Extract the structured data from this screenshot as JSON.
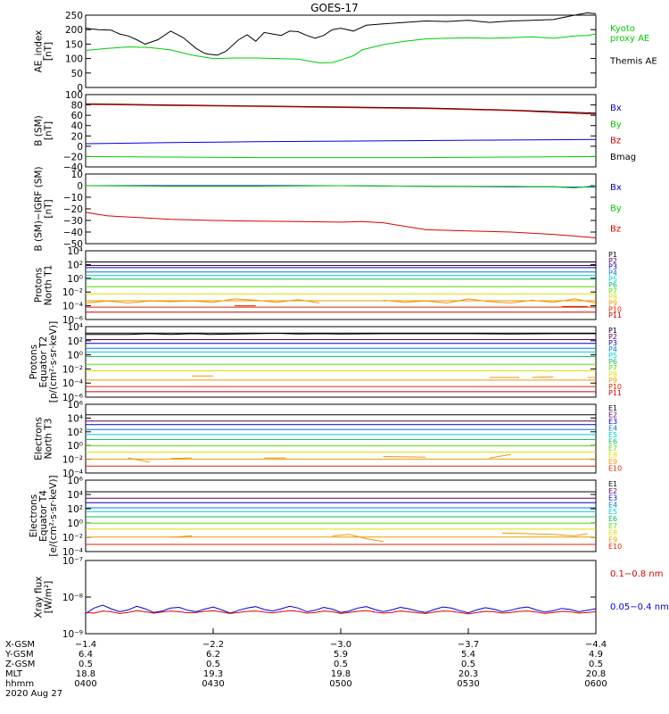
{
  "title": "GOES-17",
  "colors": {
    "black": "#000000",
    "green": "#00cc00",
    "red": "#dd0000",
    "blue": "#0000dd",
    "P": [
      "#000000",
      "#550055",
      "#0000cc",
      "#0077dd",
      "#00cccc",
      "#00bb66",
      "#55dd00",
      "#dddd00",
      "#ee9900",
      "#dd2200",
      "#cc0000"
    ],
    "E": [
      "#000000",
      "#550055",
      "#0000cc",
      "#0077dd",
      "#00cccc",
      "#00bb66",
      "#55dd00",
      "#dddd00",
      "#ee9900",
      "#dd2200",
      "#cc0000"
    ]
  },
  "chart_data": [
    {
      "type": "line",
      "ylabel": "AE_index\n[nT]",
      "ylim": [
        0,
        250
      ],
      "yticks": [
        "0",
        "50",
        "100",
        "150",
        "200",
        "250"
      ],
      "grid": false,
      "legend": [
        {
          "text": "Kyoto\nproxy AE",
          "color": "green"
        },
        {
          "text": "Themis AE",
          "color": "black"
        }
      ],
      "series": [
        {
          "name": "Themis AE",
          "color": "black",
          "x": [
            0,
            3,
            6,
            8,
            10,
            12,
            14,
            17,
            20,
            23,
            26,
            28,
            29,
            31,
            33,
            36,
            38,
            40,
            42,
            44,
            46,
            48,
            50,
            52,
            54,
            56,
            58,
            60,
            63,
            66,
            70,
            75,
            80,
            85,
            90,
            95,
            100,
            105,
            110,
            115,
            118,
            120
          ],
          "y": [
            205,
            200,
            198,
            185,
            178,
            165,
            150,
            165,
            195,
            172,
            135,
            118,
            115,
            112,
            125,
            165,
            182,
            160,
            190,
            185,
            180,
            195,
            193,
            180,
            170,
            180,
            200,
            205,
            195,
            215,
            220,
            225,
            230,
            228,
            232,
            225,
            230,
            232,
            235,
            250,
            258,
            255
          ]
        },
        {
          "name": "Kyoto proxy AE",
          "color": "green",
          "x": [
            0,
            5,
            10,
            15,
            20,
            25,
            30,
            35,
            40,
            45,
            50,
            55,
            58,
            60,
            63,
            65,
            70,
            75,
            80,
            85,
            90,
            95,
            100,
            105,
            110,
            115,
            118,
            120
          ],
          "y": [
            128,
            135,
            140,
            138,
            130,
            112,
            100,
            102,
            102,
            100,
            98,
            85,
            86,
            95,
            110,
            130,
            148,
            160,
            168,
            170,
            172,
            170,
            172,
            175,
            170,
            178,
            180,
            185
          ]
        }
      ]
    },
    {
      "type": "line",
      "ylabel": "B (SM)\n[nT]",
      "ylim": [
        -40,
        100
      ],
      "yticks": [
        "−40",
        "−20",
        "0",
        "20",
        "40",
        "60",
        "80",
        "100"
      ],
      "legend": [
        {
          "text": "Bx",
          "color": "blue"
        },
        {
          "text": "By",
          "color": "green"
        },
        {
          "text": "Bz",
          "color": "red"
        },
        {
          "text": "Bmag",
          "color": "black"
        }
      ],
      "series": [
        {
          "name": "Bmag",
          "color": "black",
          "x": [
            0,
            20,
            40,
            60,
            80,
            100,
            120
          ],
          "y": [
            82,
            80,
            78,
            76,
            74,
            70,
            64
          ]
        },
        {
          "name": "Bz",
          "color": "red",
          "x": [
            0,
            20,
            40,
            60,
            80,
            100,
            120
          ],
          "y": [
            81,
            79,
            77,
            75,
            73,
            69,
            62
          ]
        },
        {
          "name": "Bx",
          "color": "blue",
          "x": [
            0,
            20,
            40,
            60,
            80,
            100,
            120
          ],
          "y": [
            5,
            7,
            9,
            10,
            11,
            12,
            13
          ]
        },
        {
          "name": "By",
          "color": "green",
          "x": [
            0,
            20,
            40,
            60,
            80,
            100,
            120
          ],
          "y": [
            -20,
            -21,
            -22,
            -22,
            -22,
            -21,
            -20
          ]
        }
      ]
    },
    {
      "type": "line",
      "ylabel": "B (SM)−IGRF (SM)\n[nT]",
      "ylim": [
        -50,
        10
      ],
      "yticks": [
        "−50",
        "−40",
        "−30",
        "−20",
        "−10",
        "0",
        "10"
      ],
      "legend": [
        {
          "text": "Bx",
          "color": "blue"
        },
        {
          "text": "By",
          "color": "green"
        },
        {
          "text": "Bz",
          "color": "red"
        }
      ],
      "series": [
        {
          "name": "Bx",
          "color": "blue",
          "x": [
            0,
            20,
            40,
            60,
            80,
            100,
            110,
            115,
            120
          ],
          "y": [
            0,
            0,
            0,
            0,
            -0.5,
            -1,
            -1,
            -1.5,
            -1
          ]
        },
        {
          "name": "By",
          "color": "green",
          "x": [
            0,
            20,
            40,
            60,
            80,
            100,
            110,
            115,
            120
          ],
          "y": [
            0,
            -0.5,
            -0.5,
            0,
            -0.5,
            -0.5,
            -1,
            -2,
            0
          ]
        },
        {
          "name": "Bz",
          "color": "red",
          "x": [
            0,
            5,
            10,
            20,
            30,
            40,
            50,
            60,
            65,
            70,
            75,
            80,
            90,
            100,
            110,
            120
          ],
          "y": [
            -23,
            -26,
            -27,
            -29,
            -30,
            -30.5,
            -31,
            -31.5,
            -31,
            -32,
            -35,
            -38,
            -39,
            -40,
            -42,
            -45
          ]
        }
      ]
    },
    {
      "type": "line",
      "log": true,
      "ylabel": "Protons\nNorth T1",
      "ylim": [
        -6,
        4
      ],
      "yticks": [
        "10⁻⁶",
        "10⁻⁴",
        "10⁻²",
        "10⁰",
        "10²",
        "10⁴"
      ],
      "legend": [
        "P1",
        "P2",
        "P3",
        "P4",
        "P5",
        "P6",
        "P7",
        "P8",
        "P9",
        "P10",
        "P11"
      ],
      "levels": [
        2.3,
        1.9,
        1.5,
        1.0,
        0.4,
        -0.2,
        -1.2,
        -2.3,
        -3.2,
        -4.2,
        -5.0
      ],
      "fragments": [
        {
          "idx": 8,
          "x": [
            0,
            5,
            10,
            15,
            20,
            25,
            30,
            35,
            40,
            45,
            50,
            55
          ],
          "y": [
            -3.6,
            -3.3,
            -3.6,
            -3.3,
            -3.4,
            -3.3,
            -3.5,
            -3.0,
            -3.2,
            -3.5,
            -3.1,
            -3.6
          ]
        },
        {
          "idx": 8,
          "x": [
            70,
            75,
            80,
            85,
            90,
            95,
            100,
            105,
            110,
            115,
            120
          ],
          "y": [
            -3.2,
            -3.5,
            -3.3,
            -3.6,
            -3.0,
            -3.4,
            -3.6,
            -3.2,
            -3.5,
            -3.0,
            -3.6
          ]
        },
        {
          "idx": 9,
          "x": [
            35,
            40
          ],
          "y": [
            -4.0,
            -4.0
          ]
        },
        {
          "idx": 9,
          "x": [
            112,
            118
          ],
          "y": [
            -4.1,
            -4.1
          ]
        }
      ]
    },
    {
      "type": "line",
      "log": true,
      "ylabel": "Protons\nEquator T2\n[p/(cm²·s·sr·keV)]",
      "ylim": [
        -6,
        4
      ],
      "yticks": [
        "10⁻⁶",
        "10⁻⁴",
        "10⁻²",
        "10⁰",
        "10²",
        "10⁴"
      ],
      "legend": [
        "P1",
        "P2",
        "P3",
        "P4",
        "P5",
        "P6",
        "P7",
        "P8",
        "P9",
        "P10",
        "P11"
      ],
      "levels": [
        3.0,
        2.2,
        1.6,
        1.0,
        0.4,
        -0.3,
        -1.3,
        -2.3,
        -3.5,
        -4.5,
        -5.3
      ],
      "fragments": [
        {
          "idx": 0,
          "x": [
            0,
            10,
            15,
            20,
            25,
            28,
            29,
            35,
            40,
            45,
            50,
            55,
            60,
            70,
            80,
            90,
            100,
            110,
            120
          ],
          "y": [
            2.9,
            2.9,
            3.0,
            2.9,
            3.0,
            2.95,
            2.9,
            2.95,
            3.0,
            3.05,
            2.95,
            3.0,
            2.95,
            3.0,
            3.0,
            3.0,
            2.95,
            3.0,
            3.0
          ]
        },
        {
          "idx": 8,
          "x": [
            25,
            30
          ],
          "y": [
            -3.0,
            -3.0
          ]
        },
        {
          "idx": 8,
          "x": [
            95,
            102
          ],
          "y": [
            -3.2,
            -3.2
          ]
        },
        {
          "idx": 8,
          "x": [
            105,
            110
          ],
          "y": [
            -3.2,
            -3.1
          ]
        },
        {
          "idx": 8,
          "x": [
            118,
            120
          ],
          "y": [
            -3.2,
            -3.2
          ]
        }
      ]
    },
    {
      "type": "line",
      "log": true,
      "ylabel": "Electrons\nNorth T3",
      "ylim": [
        -4,
        6
      ],
      "yticks": [
        "10⁻⁴",
        "10⁻²",
        "10⁰",
        "10²",
        "10⁴",
        "10⁶"
      ],
      "legend": [
        "E1",
        "E2",
        "E3",
        "E4",
        "E5",
        "E6",
        "E7",
        "E8",
        "E9",
        "E10"
      ],
      "levels": [
        4.4,
        3.6,
        3.0,
        2.4,
        1.6,
        0.8,
        0.0,
        -1.0,
        -1.9,
        -3.0
      ],
      "fragments": [
        {
          "idx": 8,
          "x": [
            10,
            15
          ],
          "y": [
            -1.8,
            -2.4
          ]
        },
        {
          "idx": 8,
          "x": [
            20,
            25
          ],
          "y": [
            -1.9,
            -1.8
          ]
        },
        {
          "idx": 8,
          "x": [
            42,
            47
          ],
          "y": [
            -1.8,
            -1.8
          ]
        },
        {
          "idx": 8,
          "x": [
            70,
            80
          ],
          "y": [
            -1.6,
            -1.7
          ]
        },
        {
          "idx": 8,
          "x": [
            95,
            100
          ],
          "y": [
            -1.8,
            -1.3
          ]
        }
      ]
    },
    {
      "type": "line",
      "log": true,
      "ylabel": "Electrons\nEquator T4\n[e/(cm²·s·sr·keV)]",
      "ylim": [
        -4,
        6
      ],
      "yticks": [
        "10⁻⁴",
        "10⁻²",
        "10⁰",
        "10²",
        "10⁴",
        "10⁶"
      ],
      "legend": [
        "E1",
        "E2",
        "E3",
        "E4",
        "E5",
        "E6",
        "E7",
        "E8",
        "E9",
        "E10"
      ],
      "levels": [
        4.3,
        3.5,
        2.8,
        2.2,
        1.6,
        0.8,
        0.0,
        -0.9,
        -1.9,
        -3.0
      ],
      "fragments": [
        {
          "idx": 8,
          "x": [
            20,
            25
          ],
          "y": [
            -2.0,
            -1.8
          ]
        },
        {
          "idx": 8,
          "x": [
            58,
            62,
            66,
            70
          ],
          "y": [
            -1.8,
            -1.6,
            -2.2,
            -2.6
          ]
        },
        {
          "idx": 8,
          "x": [
            98,
            104,
            110,
            115,
            118
          ],
          "y": [
            -1.4,
            -1.5,
            -1.6,
            -1.8,
            -1.5
          ]
        }
      ]
    },
    {
      "type": "line",
      "log": true,
      "ylabel": "Xray flux\n[W/m²]",
      "ylim": [
        -9,
        -7
      ],
      "yticks": [
        "10⁻⁹",
        "10⁻⁸",
        "10⁻⁷"
      ],
      "legend": [
        {
          "text": "0.1−0.8 nm",
          "color": "red"
        },
        {
          "text": "0.05−0.4 nm",
          "color": "blue"
        }
      ],
      "series": [
        {
          "name": "0.05−0.4 nm",
          "color": "blue",
          "y": [
            -8.45,
            -8.3,
            -8.22,
            -8.32,
            -8.4,
            -8.35,
            -8.25,
            -8.32,
            -8.42,
            -8.38,
            -8.3,
            -8.28,
            -8.36,
            -8.4,
            -8.33,
            -8.27,
            -8.35,
            -8.44,
            -8.36,
            -8.3,
            -8.26,
            -8.34,
            -8.38,
            -8.32,
            -8.25,
            -8.3,
            -8.4,
            -8.36,
            -8.28,
            -8.33,
            -8.42,
            -8.38,
            -8.3,
            -8.26,
            -8.34,
            -8.4,
            -8.35,
            -8.28,
            -8.32,
            -8.38,
            -8.42,
            -8.34,
            -8.27,
            -8.3,
            -8.37,
            -8.43,
            -8.35,
            -8.29,
            -8.33,
            -8.4,
            -8.36,
            -8.3,
            -8.27,
            -8.35,
            -8.41,
            -8.37,
            -8.31,
            -8.34,
            -8.4,
            -8.36,
            -8.32
          ]
        },
        {
          "name": "0.1−0.8 nm",
          "color": "red",
          "y": [
            -8.42,
            -8.44,
            -8.38,
            -8.4,
            -8.45,
            -8.42,
            -8.37,
            -8.4,
            -8.44,
            -8.41,
            -8.38,
            -8.4,
            -8.43,
            -8.42,
            -8.39,
            -8.37,
            -8.41,
            -8.45,
            -8.42,
            -8.39,
            -8.38,
            -8.41,
            -8.43,
            -8.4,
            -8.37,
            -8.39,
            -8.44,
            -8.42,
            -8.38,
            -8.4,
            -8.45,
            -8.42,
            -8.39,
            -8.37,
            -8.41,
            -8.44,
            -8.42,
            -8.38,
            -8.4,
            -8.43,
            -8.45,
            -8.41,
            -8.38,
            -8.39,
            -8.42,
            -8.46,
            -8.42,
            -8.39,
            -8.4,
            -8.44,
            -8.42,
            -8.39,
            -8.38,
            -8.41,
            -8.45,
            -8.42,
            -8.39,
            -8.4,
            -8.44,
            -8.42,
            -8.4
          ]
        }
      ]
    }
  ],
  "x_axis": {
    "row_labels": [
      "X-GSM",
      "Y-GSM",
      "Z-GSM",
      "MLT",
      "hhmm",
      "2020 Aug 27"
    ],
    "ticks": [
      {
        "minute": 0,
        "values": [
          "−1.4",
          "6.4",
          "0.5",
          "18.8",
          "0400"
        ]
      },
      {
        "minute": 30,
        "values": [
          "−2.2",
          "6.2",
          "0.5",
          "19.3",
          "0430"
        ]
      },
      {
        "minute": 60,
        "values": [
          "−3.0",
          "5.9",
          "0.5",
          "19.8",
          "0500"
        ]
      },
      {
        "minute": 90,
        "values": [
          "−3.7",
          "5.4",
          "0.5",
          "20.3",
          "0530"
        ]
      },
      {
        "minute": 120,
        "values": [
          "−4.4",
          "4.9",
          "0.5",
          "20.8",
          "0600"
        ]
      }
    ],
    "xlim": [
      0,
      120
    ]
  }
}
